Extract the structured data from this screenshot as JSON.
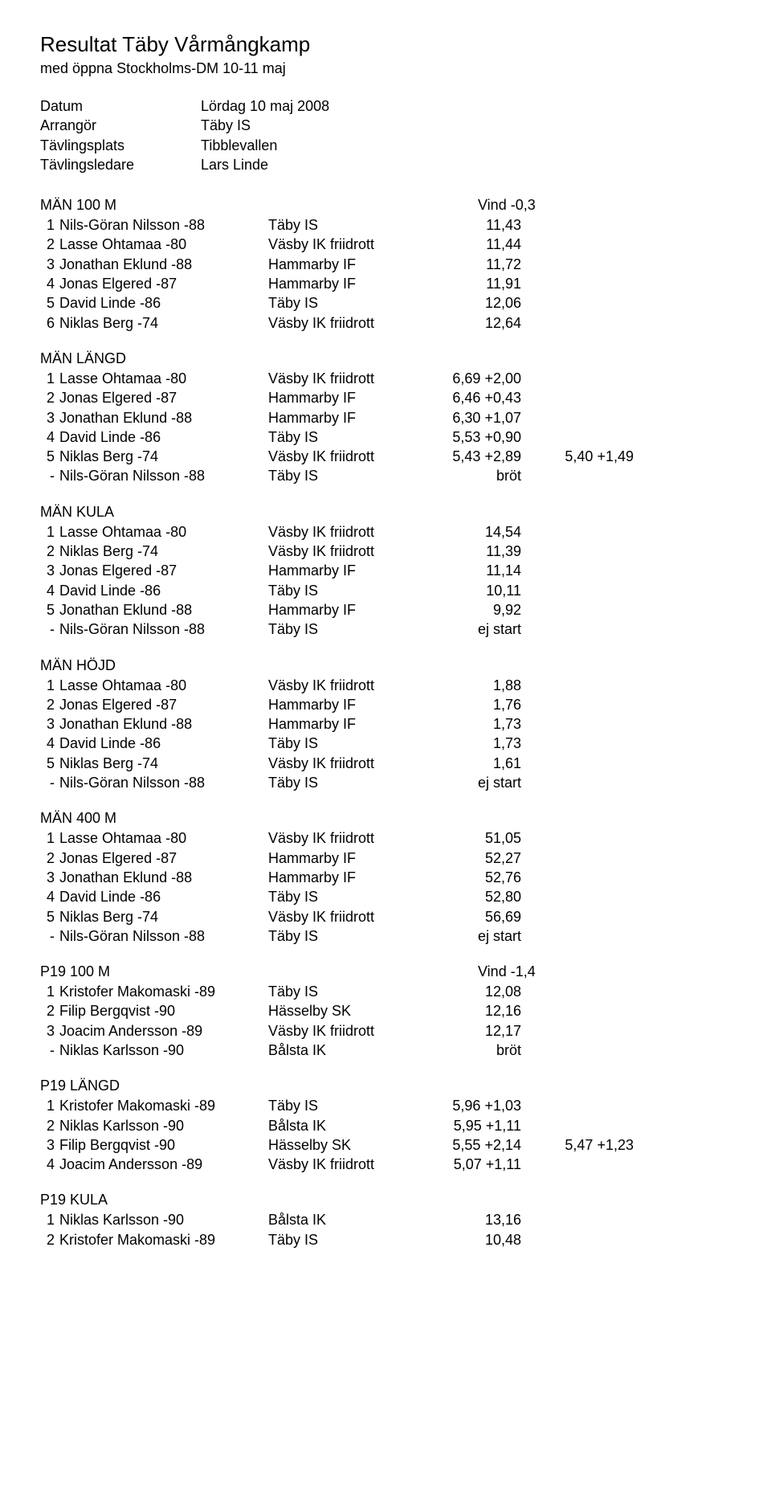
{
  "header": {
    "title": "Resultat Täby Vårmångkamp",
    "subtitle": "med öppna Stockholms-DM 10-11 maj"
  },
  "meta": [
    {
      "label": "Datum",
      "value": "Lördag 10 maj 2008"
    },
    {
      "label": "Arrangör",
      "value": "Täby IS"
    },
    {
      "label": "Tävlingsplats",
      "value": "Tibblevallen"
    },
    {
      "label": "Tävlingsledare",
      "value": "Lars Linde"
    }
  ],
  "sections": [
    {
      "title": "MÄN  100 M",
      "wind": "Vind -0,3",
      "rows": [
        {
          "p": "1",
          "name": "Nils-Göran Nilsson -88",
          "club": "Täby IS",
          "res": "11,43"
        },
        {
          "p": "2",
          "name": "Lasse Ohtamaa -80",
          "club": "Väsby IK friidrott",
          "res": "11,44"
        },
        {
          "p": "3",
          "name": "Jonathan Eklund -88",
          "club": "Hammarby IF",
          "res": "11,72"
        },
        {
          "p": "4",
          "name": "Jonas Elgered -87",
          "club": "Hammarby IF",
          "res": "11,91"
        },
        {
          "p": "5",
          "name": "David Linde -86",
          "club": "Täby IS",
          "res": "12,06"
        },
        {
          "p": "6",
          "name": "Niklas Berg -74",
          "club": "Väsby IK friidrott",
          "res": "12,64"
        }
      ]
    },
    {
      "title": "MÄN  LÄNGD",
      "rows": [
        {
          "p": "1",
          "name": "Lasse Ohtamaa -80",
          "club": "Väsby IK friidrott",
          "res": "6,69 +2,00"
        },
        {
          "p": "2",
          "name": "Jonas Elgered -87",
          "club": "Hammarby IF",
          "res": "6,46 +0,43"
        },
        {
          "p": "3",
          "name": "Jonathan Eklund -88",
          "club": "Hammarby IF",
          "res": "6,30 +1,07"
        },
        {
          "p": "4",
          "name": "David Linde -86",
          "club": "Täby IS",
          "res": "5,53 +0,90"
        },
        {
          "p": "5",
          "name": "Niklas Berg -74",
          "club": "Väsby IK friidrott",
          "res": "5,43 +2,89",
          "extra": "5,40 +1,49"
        },
        {
          "p": "-",
          "name": "Nils-Göran Nilsson -88",
          "club": "Täby IS",
          "res": "bröt"
        }
      ]
    },
    {
      "title": "MÄN  KULA",
      "rows": [
        {
          "p": "1",
          "name": "Lasse Ohtamaa -80",
          "club": "Väsby IK friidrott",
          "res": "14,54"
        },
        {
          "p": "2",
          "name": "Niklas Berg -74",
          "club": "Väsby IK friidrott",
          "res": "11,39"
        },
        {
          "p": "3",
          "name": "Jonas Elgered -87",
          "club": "Hammarby IF",
          "res": "11,14"
        },
        {
          "p": "4",
          "name": "David Linde -86",
          "club": "Täby IS",
          "res": "10,11"
        },
        {
          "p": "5",
          "name": "Jonathan Eklund -88",
          "club": "Hammarby IF",
          "res": "9,92"
        },
        {
          "p": "-",
          "name": "Nils-Göran Nilsson -88",
          "club": "Täby IS",
          "res": "ej start"
        }
      ]
    },
    {
      "title": "MÄN  HÖJD",
      "rows": [
        {
          "p": "1",
          "name": "Lasse Ohtamaa -80",
          "club": "Väsby IK friidrott",
          "res": "1,88"
        },
        {
          "p": "2",
          "name": "Jonas Elgered -87",
          "club": "Hammarby IF",
          "res": "1,76"
        },
        {
          "p": "3",
          "name": "Jonathan Eklund -88",
          "club": "Hammarby IF",
          "res": "1,73"
        },
        {
          "p": "4",
          "name": "David Linde -86",
          "club": "Täby IS",
          "res": "1,73"
        },
        {
          "p": "5",
          "name": "Niklas Berg -74",
          "club": "Väsby IK friidrott",
          "res": "1,61"
        },
        {
          "p": "-",
          "name": "Nils-Göran Nilsson -88",
          "club": "Täby IS",
          "res": "ej start"
        }
      ]
    },
    {
      "title": "MÄN  400 M",
      "rows": [
        {
          "p": "1",
          "name": "Lasse Ohtamaa -80",
          "club": "Väsby IK friidrott",
          "res": "51,05"
        },
        {
          "p": "2",
          "name": "Jonas Elgered -87",
          "club": "Hammarby IF",
          "res": "52,27"
        },
        {
          "p": "3",
          "name": "Jonathan Eklund -88",
          "club": "Hammarby IF",
          "res": "52,76"
        },
        {
          "p": "4",
          "name": "David Linde -86",
          "club": "Täby IS",
          "res": "52,80"
        },
        {
          "p": "5",
          "name": "Niklas Berg -74",
          "club": "Väsby IK friidrott",
          "res": "56,69"
        },
        {
          "p": "-",
          "name": "Nils-Göran Nilsson -88",
          "club": "Täby IS",
          "res": "ej start"
        }
      ]
    },
    {
      "title": "P19  100 M",
      "wind": "Vind -1,4",
      "rows": [
        {
          "p": "1",
          "name": "Kristofer Makomaski -89",
          "club": "Täby IS",
          "res": "12,08"
        },
        {
          "p": "2",
          "name": "Filip Bergqvist -90",
          "club": "Hässelby SK",
          "res": "12,16"
        },
        {
          "p": "3",
          "name": "Joacim Andersson -89",
          "club": "Väsby IK friidrott",
          "res": "12,17"
        },
        {
          "p": "-",
          "name": "Niklas Karlsson -90",
          "club": "Bålsta IK",
          "res": "bröt"
        }
      ]
    },
    {
      "title": "P19  LÄNGD",
      "rows": [
        {
          "p": "1",
          "name": "Kristofer Makomaski -89",
          "club": "Täby IS",
          "res": "5,96 +1,03"
        },
        {
          "p": "2",
          "name": "Niklas Karlsson -90",
          "club": "Bålsta IK",
          "res": "5,95 +1,11"
        },
        {
          "p": "3",
          "name": "Filip Bergqvist -90",
          "club": "Hässelby SK",
          "res": "5,55 +2,14",
          "extra": "5,47 +1,23"
        },
        {
          "p": "4",
          "name": "Joacim Andersson -89",
          "club": "Väsby IK friidrott",
          "res": "5,07 +1,11"
        }
      ]
    },
    {
      "title": "P19  KULA",
      "rows": [
        {
          "p": "1",
          "name": "Niklas Karlsson -90",
          "club": "Bålsta IK",
          "res": "13,16"
        },
        {
          "p": "2",
          "name": "Kristofer Makomaski -89",
          "club": "Täby IS",
          "res": "10,48"
        }
      ]
    }
  ]
}
